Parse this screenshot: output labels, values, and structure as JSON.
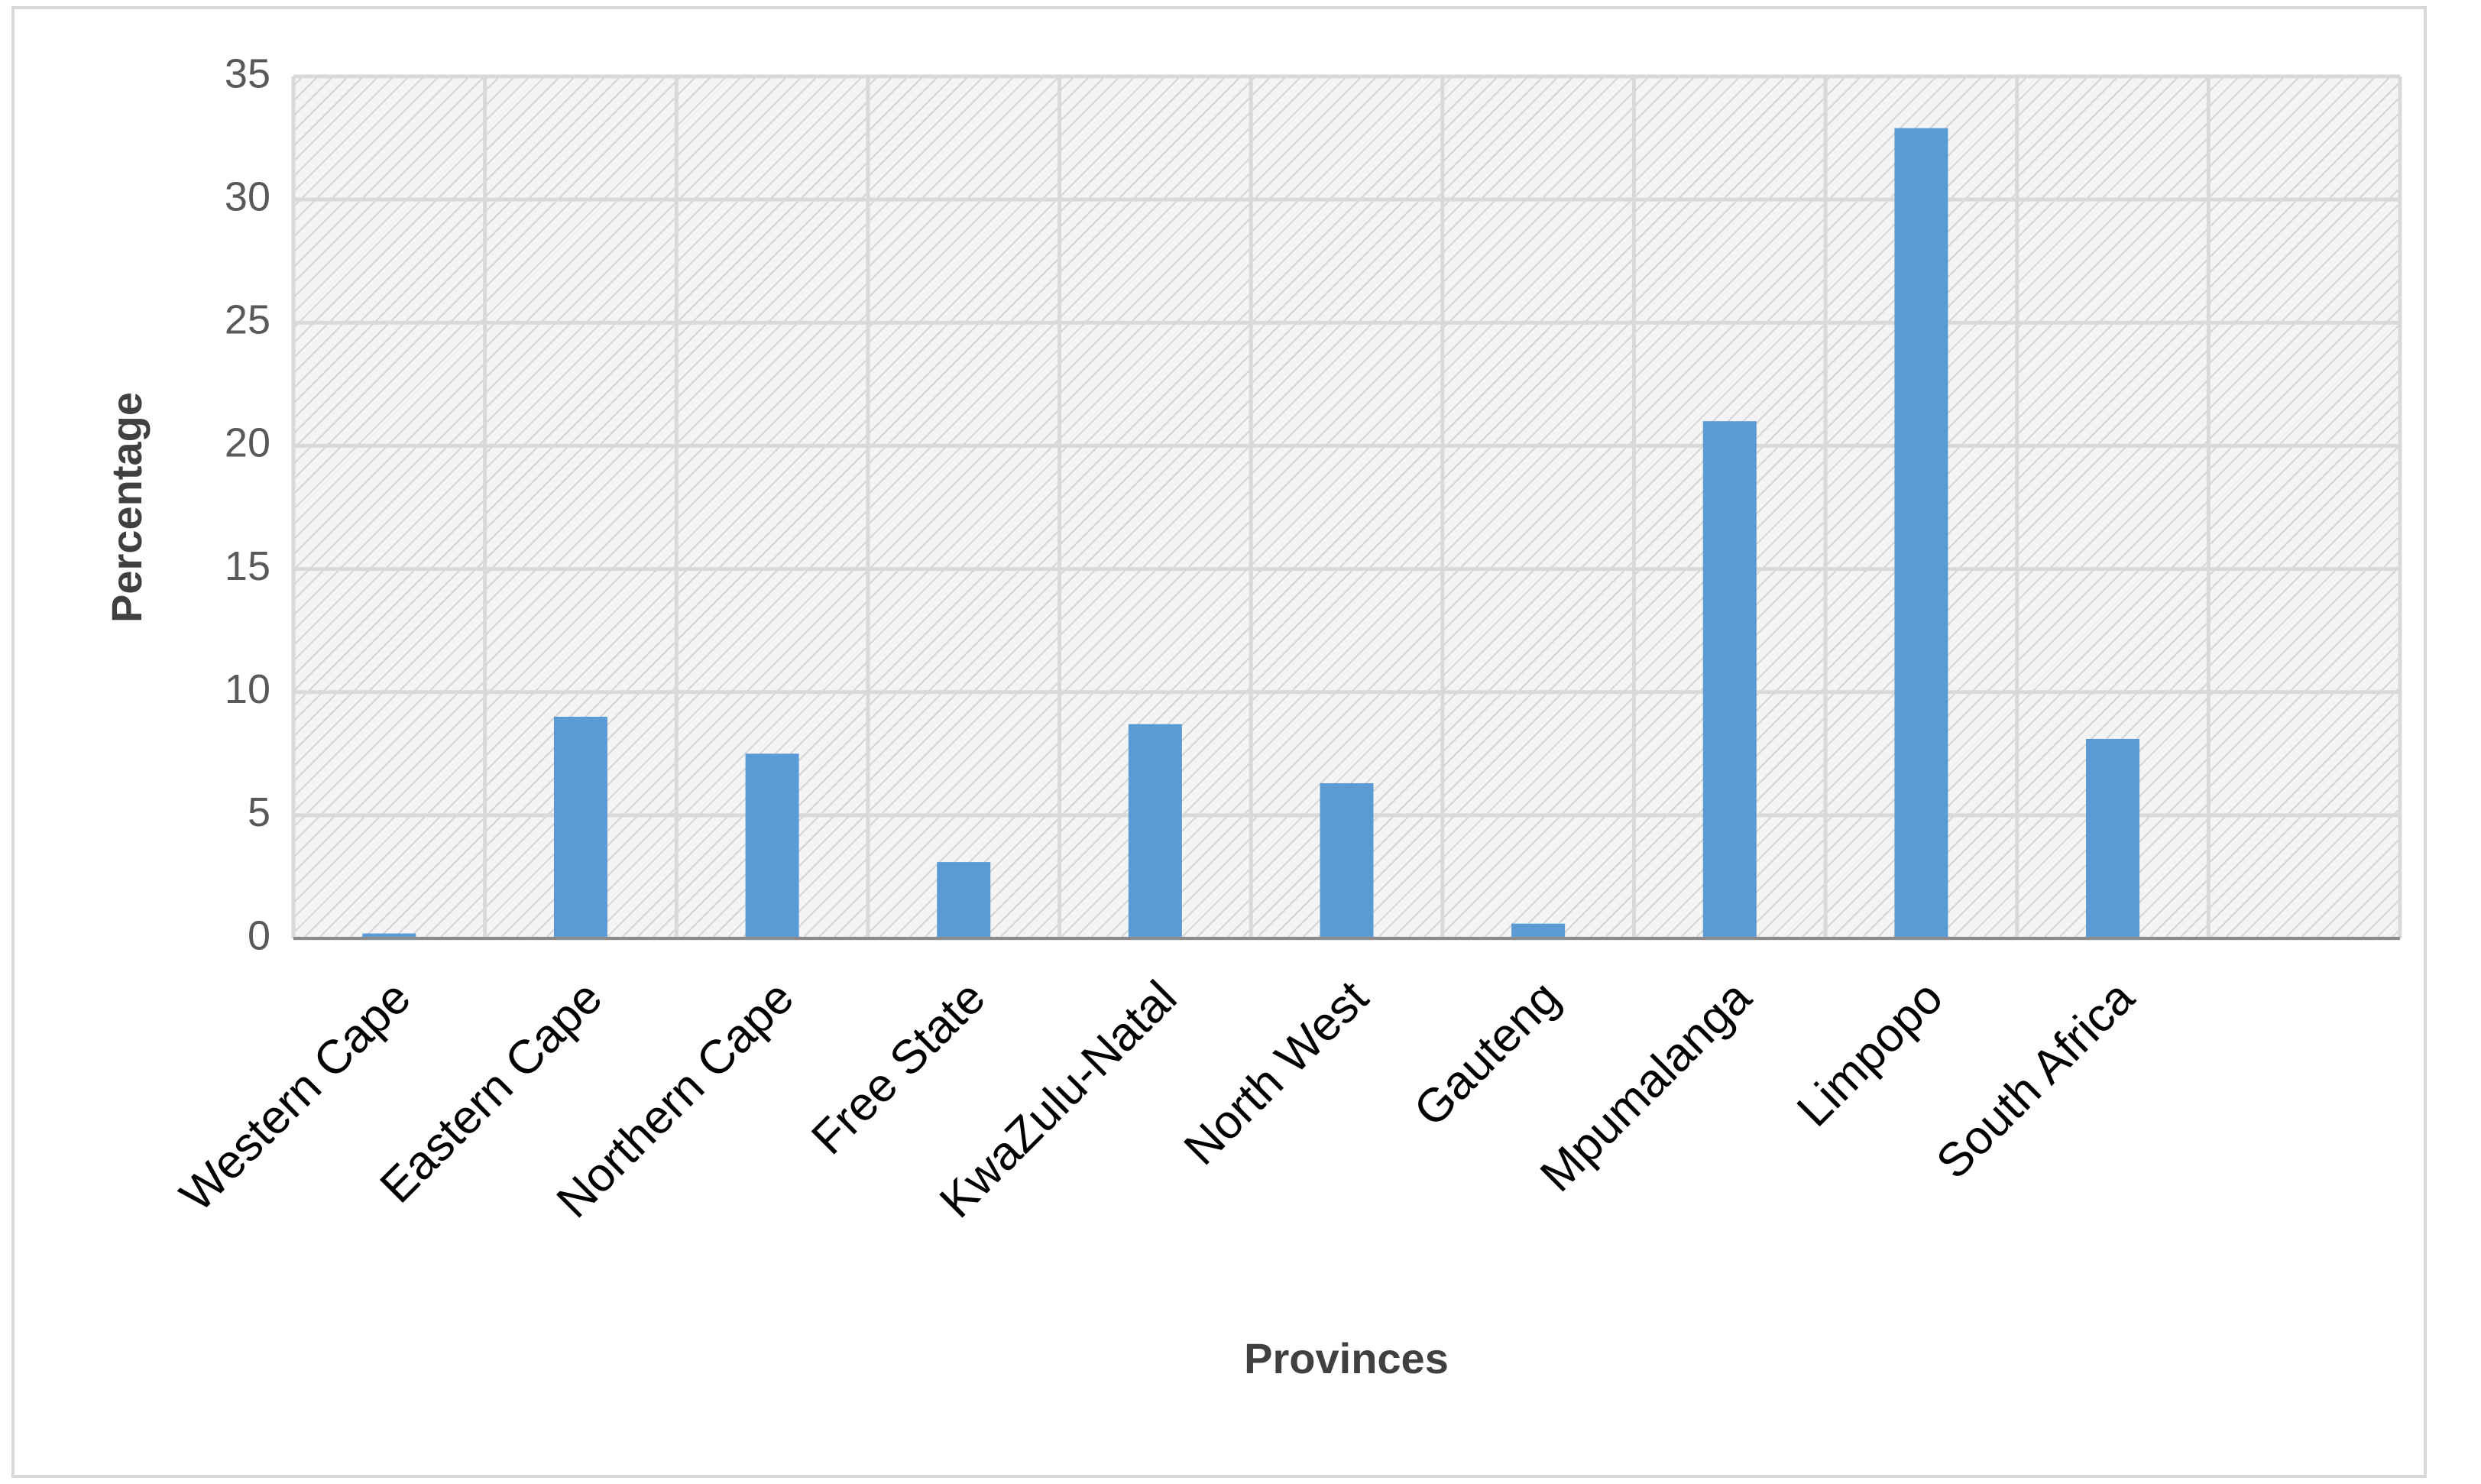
{
  "chart_data": {
    "type": "bar",
    "x_label": "Provinces",
    "y_label": "Percentage",
    "categories": [
      "Western Cape",
      "Eastern Cape",
      "Northern Cape",
      "Free State",
      "KwaZulu-Natal",
      "North West",
      "Gauteng",
      "Mpumalanga",
      "Limpopo",
      "South Africa",
      null
    ],
    "values": [
      0.2,
      9,
      7.5,
      3.1,
      8.7,
      6.3,
      0.6,
      21,
      32.9,
      8.1,
      null
    ],
    "color": "#5b9bd5",
    "ylim": [
      0,
      35
    ],
    "yticks": [
      0,
      5,
      10,
      15,
      20,
      25,
      30,
      35
    ],
    "grid": true
  }
}
